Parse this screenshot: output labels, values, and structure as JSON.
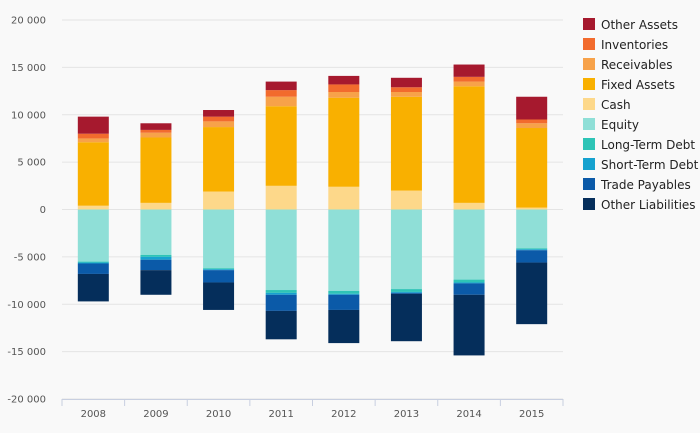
{
  "chart_data": {
    "type": "bar",
    "stacked": true,
    "categories": [
      "2008",
      "2009",
      "2010",
      "2011",
      "2012",
      "2013",
      "2014",
      "2015"
    ],
    "ylim": [
      -20000,
      20000
    ],
    "yticks": [
      20000,
      15000,
      10000,
      5000,
      0,
      -5000,
      -10000,
      -15000,
      -20000
    ],
    "ytick_labels": [
      "20 000",
      "15 000",
      "10 000",
      "5 000",
      "0",
      "-5 000",
      "-10 000",
      "-15 000",
      "-20 000"
    ],
    "grid": true,
    "legend_position": "right",
    "series": [
      {
        "name": "Other Assets",
        "color": "#a6192e",
        "values": [
          1800,
          700,
          700,
          900,
          900,
          1000,
          1300,
          2400
        ]
      },
      {
        "name": "Inventories",
        "color": "#f26b2d",
        "values": [
          500,
          300,
          500,
          700,
          800,
          500,
          500,
          400
        ]
      },
      {
        "name": "Receivables",
        "color": "#f7a24a",
        "values": [
          400,
          500,
          600,
          1000,
          600,
          500,
          500,
          500
        ]
      },
      {
        "name": "Fixed Assets",
        "color": "#f9b000",
        "values": [
          6700,
          6900,
          6800,
          8400,
          9400,
          9900,
          12300,
          8400
        ]
      },
      {
        "name": "Cash",
        "color": "#fdd88a",
        "values": [
          400,
          700,
          1900,
          2500,
          2400,
          2000,
          700,
          200
        ]
      },
      {
        "name": "Equity",
        "color": "#8fdfd7",
        "values": [
          -5500,
          -4800,
          -6200,
          -8500,
          -8600,
          -8400,
          -7400,
          -4100
        ]
      },
      {
        "name": "Long-Term Debt",
        "color": "#2ec4b6",
        "values": [
          -100,
          -200,
          -100,
          -300,
          -300,
          -300,
          -300,
          -100
        ]
      },
      {
        "name": "Short-Term Debt",
        "color": "#16a2cf",
        "values": [
          -100,
          -300,
          -100,
          -200,
          -100,
          -100,
          -100,
          -100
        ]
      },
      {
        "name": "Trade Payables",
        "color": "#0b5aa8",
        "values": [
          -1100,
          -1100,
          -1300,
          -1700,
          -1600,
          -100,
          -1200,
          -1300
        ]
      },
      {
        "name": "Other Liabilities",
        "color": "#052e5b",
        "values": [
          -2900,
          -2600,
          -2900,
          -3000,
          -3500,
          -5000,
          -6400,
          -6500
        ]
      }
    ]
  }
}
